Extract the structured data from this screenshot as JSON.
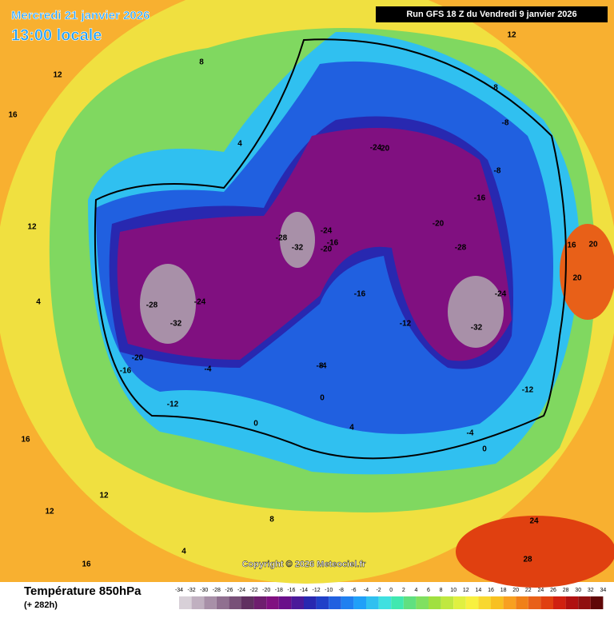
{
  "header": {
    "date": "Mercredi 21 janvier 2026",
    "time": "13:00 locale",
    "run": "Run GFS 18 Z du Vendredi 9 janvier 2026"
  },
  "copyright": "Copyright © 2026 Meteociel.fr",
  "legend": {
    "title": "Température 850hPa",
    "lead": "(+ 282h)",
    "ticks": [
      -34,
      -32,
      -30,
      -28,
      -26,
      -24,
      -22,
      -20,
      -18,
      -16,
      -14,
      -12,
      -10,
      -8,
      -6,
      -4,
      -2,
      0,
      2,
      4,
      6,
      8,
      10,
      12,
      14,
      16,
      18,
      20,
      22,
      24,
      26,
      28,
      30,
      32,
      34
    ],
    "colors": [
      "#d8d0d8",
      "#c0b0c0",
      "#a890a8",
      "#907090",
      "#785078",
      "#603060",
      "#6e1e6e",
      "#801080",
      "#6a0f8a",
      "#4a1a9a",
      "#2828b0",
      "#2040c8",
      "#2060e0",
      "#2080f0",
      "#20a0f8",
      "#30c0f0",
      "#40e0e0",
      "#40e8b0",
      "#60e080",
      "#80e060",
      "#a0e040",
      "#c0e840",
      "#e0f040",
      "#f8f040",
      "#f8d830",
      "#f8c020",
      "#f8a020",
      "#f08018",
      "#e86018",
      "#e04010",
      "#d02010",
      "#b01010",
      "#901010",
      "#600808"
    ]
  },
  "map_labels": [
    -32,
    -28,
    -24,
    -20,
    -16,
    -12,
    -32,
    -28,
    -24,
    -20,
    -16,
    -32,
    -28,
    -24,
    -20,
    -16,
    -12,
    -8,
    -24,
    -20,
    -16,
    -12,
    -8,
    -4,
    0,
    4,
    8,
    12,
    -8,
    -4,
    0,
    4,
    8,
    12,
    16,
    20,
    24,
    28,
    16,
    12,
    8,
    4,
    16,
    12,
    20,
    16,
    12,
    4,
    0,
    -4
  ]
}
